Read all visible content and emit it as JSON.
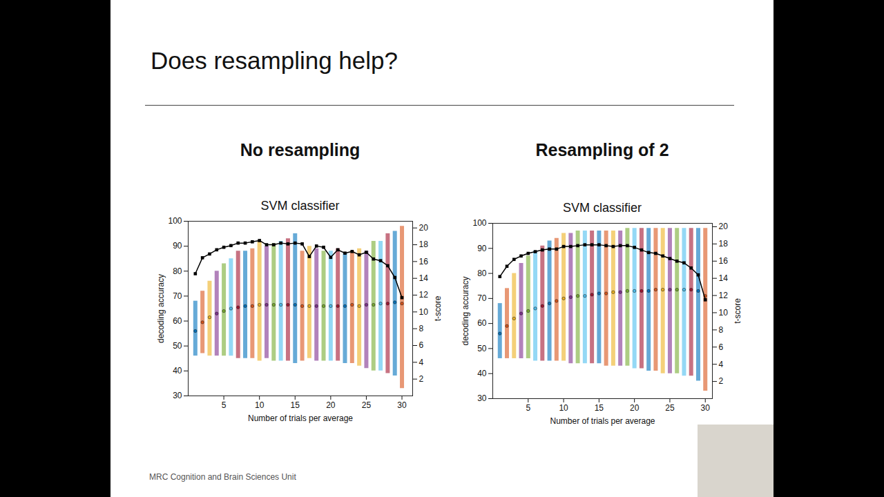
{
  "slide": {
    "title": "Does resampling help?",
    "footer": "MRC Cognition and Brain Sciences Unit"
  },
  "chart_data": [
    {
      "type": "strip",
      "heading": "No resampling",
      "title": "SVM classifier",
      "xlabel": "Number of trials per average",
      "ylabel": "decoding accuracy",
      "y2label": "t-score",
      "x": [
        1,
        2,
        3,
        4,
        5,
        6,
        7,
        8,
        9,
        10,
        11,
        12,
        13,
        14,
        15,
        16,
        17,
        18,
        19,
        20,
        21,
        22,
        23,
        24,
        25,
        26,
        27,
        28,
        29,
        30
      ],
      "xlim": [
        0,
        31.5
      ],
      "xticks": [
        5,
        10,
        15,
        20,
        25,
        30
      ],
      "ylim": [
        30,
        100
      ],
      "yticks": [
        30,
        40,
        50,
        60,
        70,
        80,
        90,
        100
      ],
      "y2lim": [
        0,
        20.8
      ],
      "y2ticks": [
        2,
        4,
        6,
        8,
        10,
        12,
        14,
        16,
        18,
        20
      ],
      "grid": false,
      "series": [
        {
          "values": [
            56,
            59.5,
            61.5,
            63,
            64,
            65,
            65.5,
            66,
            66,
            66.5,
            66.5,
            66.5,
            66.5,
            66.5,
            66.5,
            66,
            66,
            66,
            66,
            66,
            66,
            66,
            66.5,
            66,
            66.5,
            66.5,
            67,
            67,
            67.5,
            67
          ],
          "ranges": [
            [
              46,
              68
            ],
            [
              47,
              72
            ],
            [
              46,
              76
            ],
            [
              46,
              80
            ],
            [
              46,
              83
            ],
            [
              46,
              85
            ],
            [
              45,
              88
            ],
            [
              45,
              88
            ],
            [
              45,
              89
            ],
            [
              44,
              92
            ],
            [
              45,
              90
            ],
            [
              44,
              91
            ],
            [
              44,
              92
            ],
            [
              44,
              93
            ],
            [
              43,
              95
            ],
            [
              44,
              88
            ],
            [
              45,
              90
            ],
            [
              44,
              89
            ],
            [
              44,
              88
            ],
            [
              44,
              88
            ],
            [
              44,
              89
            ],
            [
              43,
              87
            ],
            [
              43,
              88
            ],
            [
              42,
              89
            ],
            [
              41,
              88
            ],
            [
              40,
              92
            ],
            [
              40,
              92
            ],
            [
              39,
              95
            ],
            [
              38,
              96
            ],
            [
              33,
              98
            ]
          ],
          "colors": [
            "#0072BD",
            "#D95319",
            "#EDB120",
            "#7E2F8E",
            "#77AC30",
            "#4DBEEE",
            "#A2142F",
            "#0072BD",
            "#D95319",
            "#EDB120",
            "#7E2F8E",
            "#77AC30",
            "#4DBEEE",
            "#A2142F",
            "#0072BD",
            "#D95319",
            "#EDB120",
            "#7E2F8E",
            "#77AC30",
            "#4DBEEE",
            "#A2142F",
            "#0072BD",
            "#D95319",
            "#EDB120",
            "#7E2F8E",
            "#77AC30",
            "#4DBEEE",
            "#A2142F",
            "#0072BD",
            "#D95319"
          ]
        },
        {
          "type": "line",
          "axis": "y2",
          "color": "#000000",
          "marker": "square",
          "values": [
            14.55,
            16.45,
            16.9,
            17.4,
            17.7,
            17.9,
            18.2,
            18.2,
            18.35,
            18.5,
            18.0,
            18.0,
            18.2,
            18.1,
            18.2,
            18.1,
            16.6,
            17.85,
            17.7,
            16.5,
            17.4,
            17.0,
            17.2,
            16.8,
            17.1,
            16.3,
            16.1,
            15.5,
            14.1,
            11.7
          ]
        }
      ]
    },
    {
      "type": "strip",
      "heading": "Resampling of 2",
      "title": "SVM classifier",
      "xlabel": "Number of trials per average",
      "ylabel": "decoding accuracy",
      "y2label": "t-score",
      "x": [
        1,
        2,
        3,
        4,
        5,
        6,
        7,
        8,
        9,
        10,
        11,
        12,
        13,
        14,
        15,
        16,
        17,
        18,
        19,
        20,
        21,
        22,
        23,
        24,
        25,
        26,
        27,
        28,
        29,
        30
      ],
      "xlim": [
        0,
        31
      ],
      "xticks": [
        5,
        10,
        15,
        20,
        25,
        30
      ],
      "ylim": [
        30,
        100
      ],
      "yticks": [
        30,
        40,
        50,
        60,
        70,
        80,
        90,
        100
      ],
      "y2lim": [
        0,
        20.4
      ],
      "y2ticks": [
        2,
        4,
        6,
        8,
        10,
        12,
        14,
        16,
        18,
        20
      ],
      "grid": false,
      "series": [
        {
          "values": [
            56,
            59,
            62,
            64,
            65,
            66,
            67,
            68,
            69,
            70,
            70.5,
            71,
            71,
            71.5,
            72,
            72,
            72.5,
            72.5,
            73,
            73,
            73,
            73,
            73.5,
            73.5,
            73.5,
            73.5,
            73.5,
            73.5,
            73,
            71
          ],
          "ranges": [
            [
              46,
              68
            ],
            [
              46,
              74
            ],
            [
              46,
              80
            ],
            [
              46,
              84
            ],
            [
              46,
              87
            ],
            [
              45,
              89
            ],
            [
              45,
              91
            ],
            [
              45,
              93
            ],
            [
              45,
              94
            ],
            [
              45,
              96
            ],
            [
              44,
              96
            ],
            [
              44,
              97
            ],
            [
              44,
              97
            ],
            [
              44,
              97
            ],
            [
              44,
              97
            ],
            [
              43,
              97
            ],
            [
              43,
              97
            ],
            [
              43,
              97
            ],
            [
              43,
              98
            ],
            [
              42,
              98
            ],
            [
              42,
              98
            ],
            [
              41,
              98
            ],
            [
              41,
              98
            ],
            [
              40,
              98
            ],
            [
              40,
              98
            ],
            [
              40,
              98
            ],
            [
              39,
              98
            ],
            [
              39,
              98
            ],
            [
              37,
              98
            ],
            [
              33,
              98
            ]
          ],
          "colors": [
            "#0072BD",
            "#D95319",
            "#EDB120",
            "#7E2F8E",
            "#77AC30",
            "#4DBEEE",
            "#A2142F",
            "#0072BD",
            "#D95319",
            "#EDB120",
            "#7E2F8E",
            "#77AC30",
            "#4DBEEE",
            "#A2142F",
            "#0072BD",
            "#D95319",
            "#EDB120",
            "#7E2F8E",
            "#77AC30",
            "#4DBEEE",
            "#A2142F",
            "#0072BD",
            "#D95319",
            "#EDB120",
            "#7E2F8E",
            "#77AC30",
            "#4DBEEE",
            "#A2142F",
            "#0072BD",
            "#D95319"
          ]
        },
        {
          "type": "line",
          "axis": "y2",
          "color": "#000000",
          "marker": "square",
          "values": [
            14.2,
            15.4,
            16.2,
            16.6,
            16.9,
            17.1,
            17.3,
            17.4,
            17.4,
            17.7,
            17.7,
            17.8,
            17.9,
            17.9,
            17.9,
            17.8,
            17.7,
            17.8,
            17.8,
            17.6,
            17.3,
            17.0,
            16.9,
            16.6,
            16.3,
            16.0,
            15.8,
            15.2,
            14.4,
            11.5
          ]
        }
      ]
    }
  ]
}
